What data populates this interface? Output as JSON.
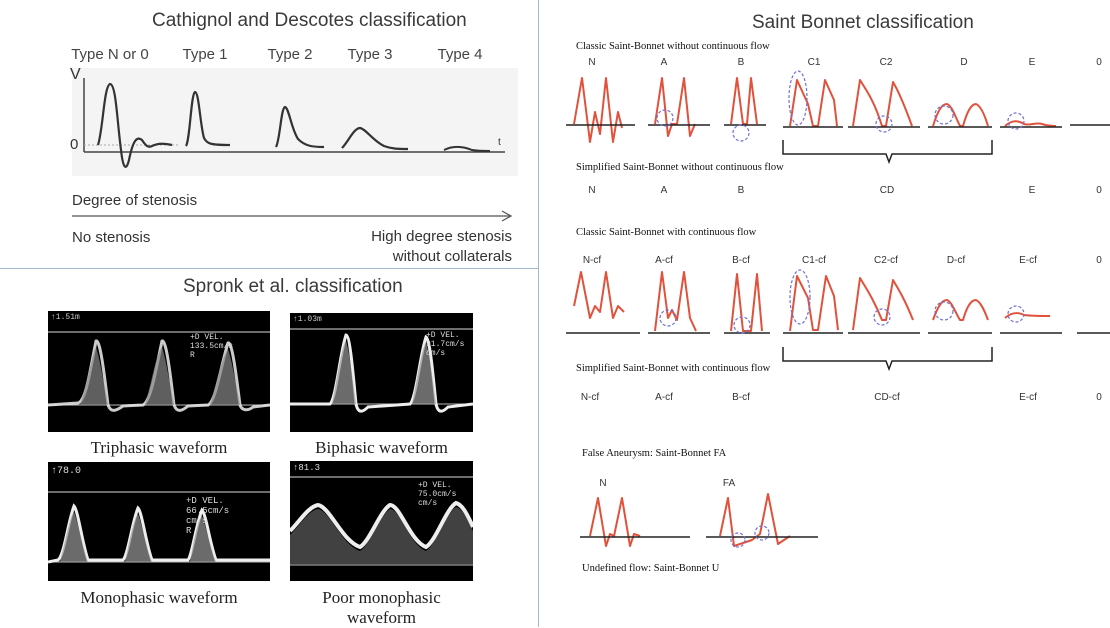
{
  "cathignol": {
    "title": "Cathignol and Descotes classification",
    "types": [
      "Type N or 0",
      "Type 1",
      "Type 2",
      "Type 3",
      "Type 4"
    ],
    "axis_v": "V",
    "axis_zero": "0",
    "axis_t": "t",
    "degree_label": "Degree of stenosis",
    "left_label": "No stenosis",
    "right_label_line1": "High degree stenosis",
    "right_label_line2": "without collaterals"
  },
  "sprongk": {
    "title": "Spronk et al. classification",
    "panels": [
      {
        "caption": "Triphasic waveform",
        "readout_top": "↑1.51m",
        "readout_vel": "+D VEL.",
        "readout_val": "133.5cm/s",
        "readout_unit": "cm/s",
        "readout_r": "R"
      },
      {
        "caption": "Biphasic waveform",
        "readout_top": "↑1.03m",
        "readout_vel": "+D VEL.",
        "readout_val": "91.7cm/s",
        "readout_unit": "cm/s",
        "readout_r": ""
      },
      {
        "caption": "Monophasic waveform",
        "readout_top": "↑78.0",
        "readout_vel": "+D VEL.",
        "readout_val": "66.5cm/s",
        "readout_unit": "cm/s",
        "readout_r": "R"
      },
      {
        "caption_line1": "Poor monophasic",
        "caption_line2": "waveform",
        "readout_top": "↑81.3",
        "readout_vel": "+D VEL.",
        "readout_val": "75.0cm/s",
        "readout_unit": "cm/s",
        "readout_r": ""
      }
    ]
  },
  "saint_bonnet": {
    "title": "Saint Bonnet classification",
    "rows": [
      {
        "subtitle": "Classic Saint-Bonnet without continuous flow",
        "labels": [
          "N",
          "A",
          "B",
          "C1",
          "C2",
          "D",
          "E",
          "0"
        ]
      },
      {
        "subtitle": "Simplified Saint-Bonnet without continuous flow",
        "labels": [
          "N",
          "A",
          "B",
          "CD",
          "E",
          "0"
        ]
      },
      {
        "subtitle": "Classic Saint-Bonnet with continuous flow",
        "labels": [
          "N-cf",
          "A-cf",
          "B-cf",
          "C1-cf",
          "C2-cf",
          "D-cf",
          "E-cf",
          "0"
        ]
      },
      {
        "subtitle": "Simplified Saint-Bonnet with continuous flow",
        "labels": [
          "N-cf",
          "A-cf",
          "B-cf",
          "CD-cf",
          "E-cf",
          "0"
        ]
      }
    ],
    "fa_subtitle": "False Aneurysm: Saint-Bonnet FA",
    "fa_labels": [
      "N",
      "FA"
    ],
    "undefined_label": "Undefined flow: Saint-Bonnet U"
  },
  "colors": {
    "divider": "#9fb7cf",
    "waveform_red": "#e0523b",
    "dashed_circle": "#6f6fd8",
    "ink": "#333333"
  }
}
